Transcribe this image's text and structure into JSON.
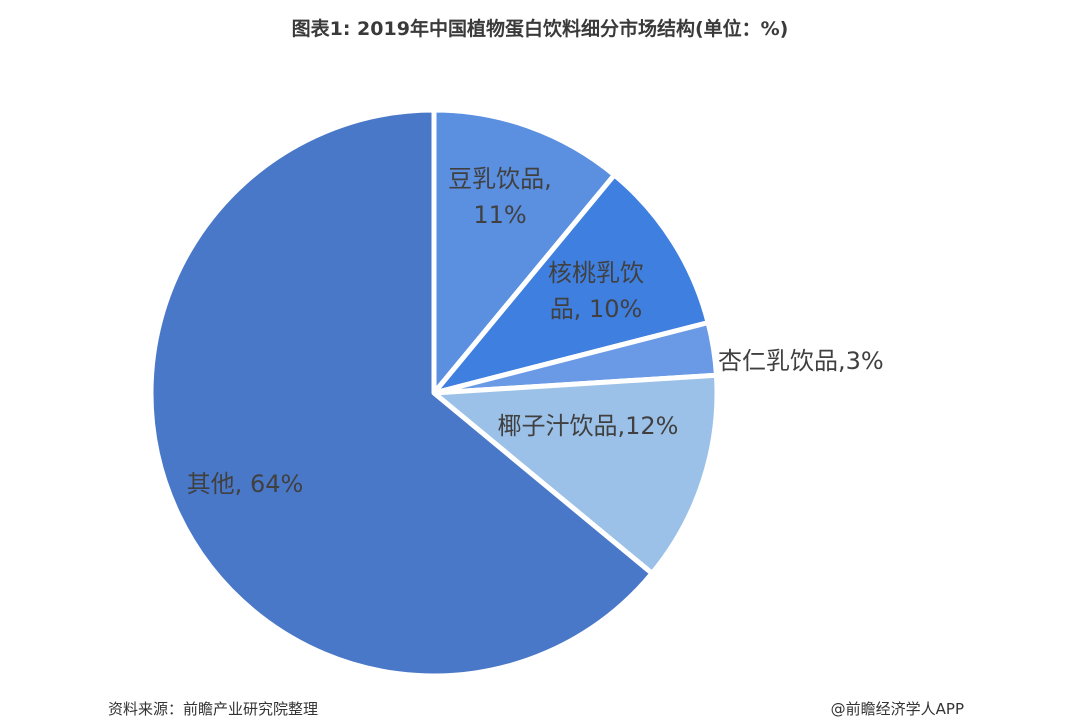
{
  "title": "图表1: 2019年中国植物蛋白饮料细分市场结构(单位：%)",
  "source": "资料来源：前瞻产业研究院整理",
  "credit": "@前瞻经济学人APP",
  "colors": {
    "background": "#ffffff",
    "slice_border": "#ffffff",
    "label_text": "#404040"
  },
  "chart_data": {
    "type": "pie",
    "title": "图表1: 2019年中国植物蛋白饮料细分市场结构(单位：%)",
    "start_angle_deg": 0,
    "direction": "clockwise",
    "legend": "none",
    "slices": [
      {
        "name": "豆乳饮品",
        "value": 11,
        "label_lines": [
          "豆乳饮品,",
          "11%"
        ],
        "color": "#5b8fe0"
      },
      {
        "name": "核桃乳饮品",
        "value": 10,
        "label_lines": [
          "核桃乳饮",
          "品, 10%"
        ],
        "color": "#3f7fe0"
      },
      {
        "name": "杏仁乳饮品",
        "value": 3,
        "label_lines": [
          "杏仁乳饮品,3%"
        ],
        "color": "#6a9ae6"
      },
      {
        "name": "椰子汁饮品",
        "value": 12,
        "label_lines": [
          "椰子汁饮品,12%"
        ],
        "color": "#9bc1e8"
      },
      {
        "name": "其他",
        "value": 64,
        "label_lines": [
          "其他, 64%"
        ],
        "color": "#4a78c8"
      }
    ]
  }
}
